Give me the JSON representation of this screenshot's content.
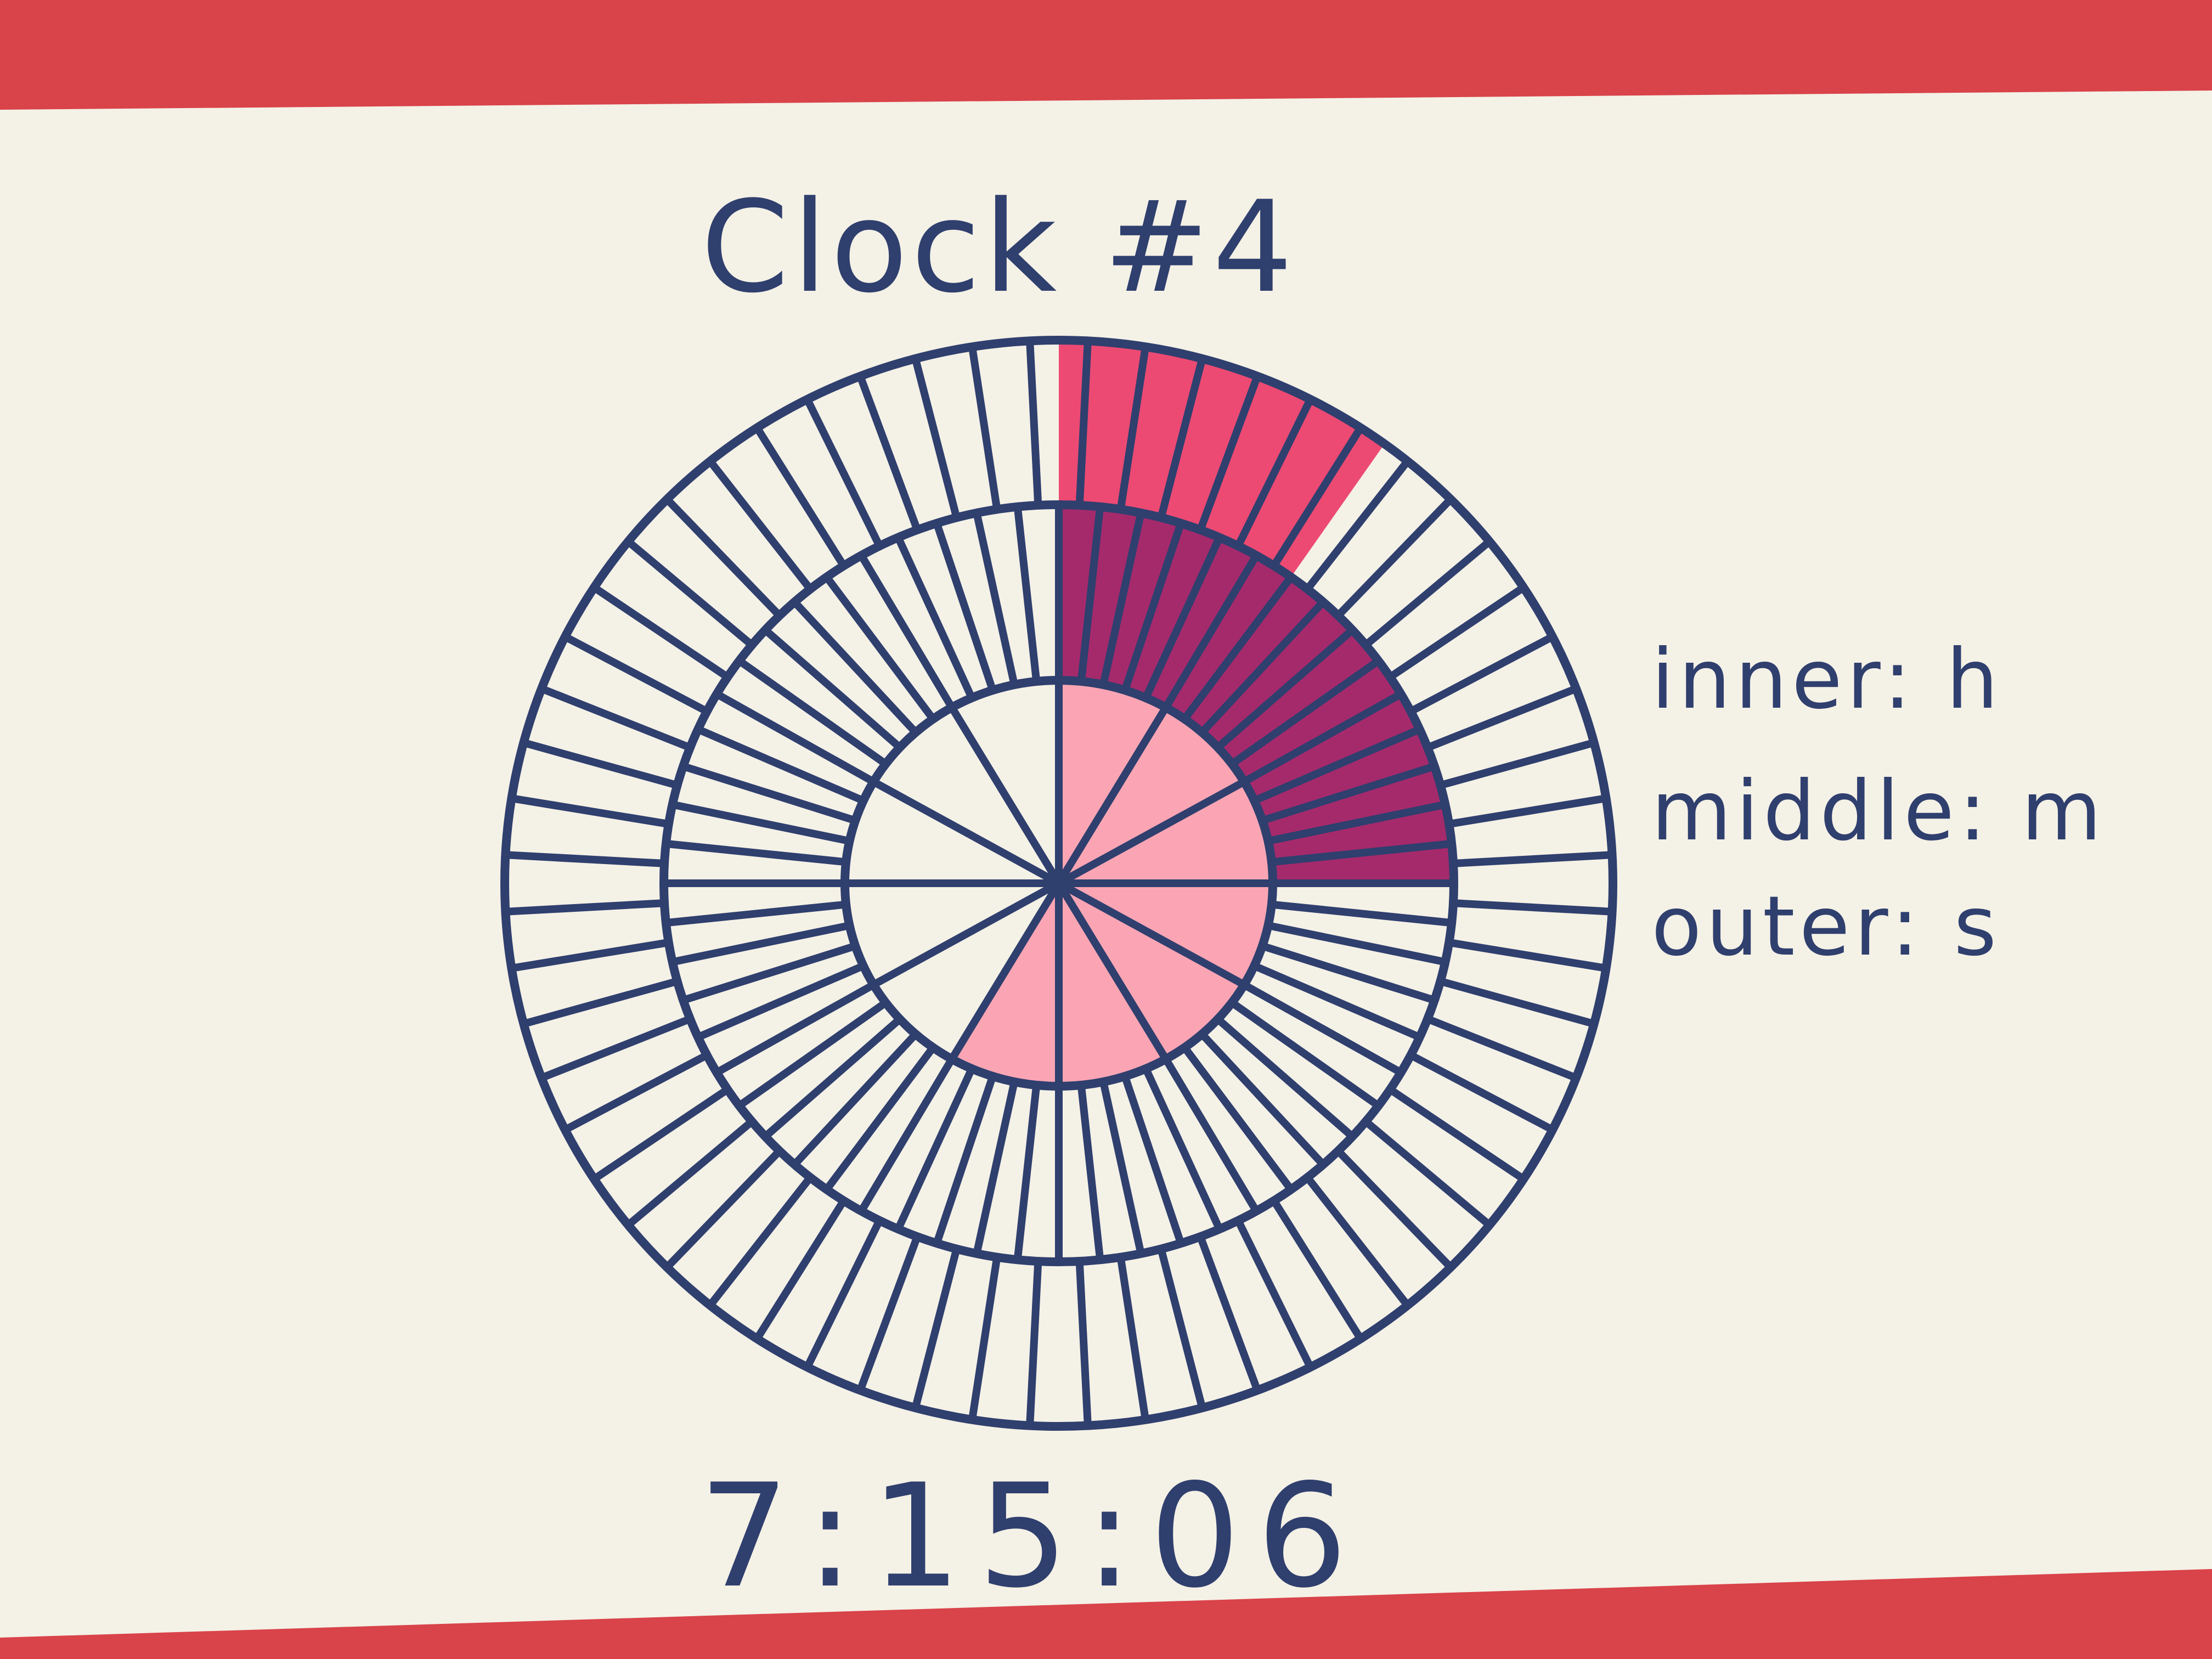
{
  "title": "Clock #4",
  "legend": {
    "inner": "inner: h",
    "middle": "middle: m",
    "outer": "outer: s"
  },
  "time_display": "7:15:06",
  "clock": {
    "hours": 7,
    "minutes": 15,
    "seconds": 6,
    "inner_ring_divisions": 12,
    "middle_ring_divisions": 60,
    "outer_ring_divisions": 60,
    "inner_unit": "h",
    "middle_unit": "m",
    "outer_unit": "s"
  },
  "colors": {
    "background": "#d9434a",
    "paper": "#f4f1e6",
    "ink": "#2f3f6e",
    "hours_fill": "#fba5b4",
    "minutes_fill": "#a52a6c",
    "seconds_fill": "#ec4a73"
  }
}
